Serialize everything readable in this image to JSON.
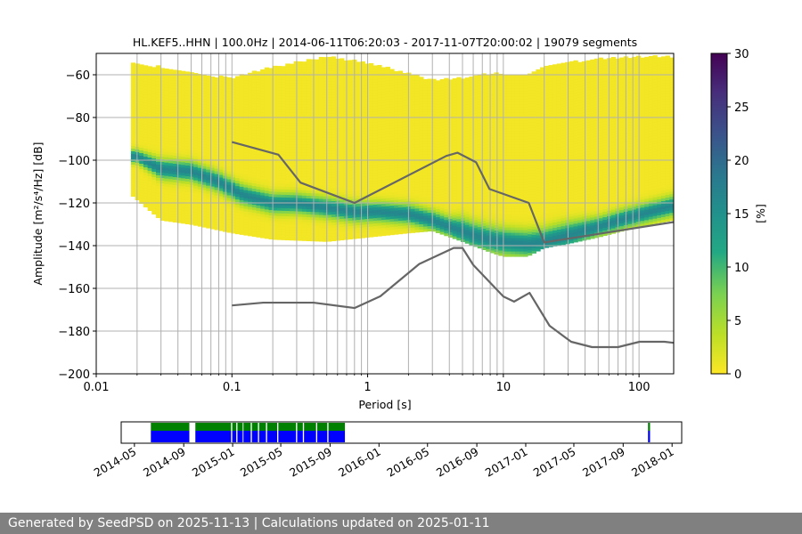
{
  "chart_data": [
    {
      "type": "heatmap",
      "title": "HL.KEF5..HHN | 100.0Hz | 2014-06-11T06:20:03 - 2017-11-07T20:00:02 | 19079 segments",
      "xlabel": "Period [s]",
      "ylabel": "Amplitude [m²/s⁴/Hz] [dB]",
      "xscale": "log",
      "xlim": [
        0.01,
        180
      ],
      "ylim": [
        -200,
        -50
      ],
      "x_ticks": [
        0.01,
        0.1,
        1,
        10,
        100
      ],
      "x_tick_labels": [
        "0.01",
        "0.1",
        "1",
        "10",
        "100"
      ],
      "y_ticks": [
        -200,
        -180,
        -160,
        -140,
        -120,
        -100,
        -80,
        -60
      ],
      "y_tick_labels": [
        "−200",
        "−180",
        "−160",
        "−140",
        "−120",
        "−100",
        "−80",
        "−60"
      ],
      "grid": true,
      "colorbar": {
        "label": "[%]",
        "range": [
          0,
          30
        ],
        "ticks": [
          0,
          5,
          10,
          15,
          20,
          25,
          30
        ],
        "tick_labels": [
          "0",
          "5",
          "10",
          "15",
          "20",
          "25",
          "30"
        ],
        "colormap": "viridis_r"
      },
      "psd_mode_curve": {
        "period": [
          0.02,
          0.03,
          0.05,
          0.08,
          0.12,
          0.2,
          0.3,
          0.5,
          0.8,
          1.2,
          2,
          3,
          4,
          5,
          6,
          8,
          10,
          15,
          20,
          30,
          50,
          80,
          120,
          180
        ],
        "db": [
          -98,
          -104,
          -105,
          -110,
          -116,
          -120,
          -120,
          -122,
          -124,
          -124,
          -125,
          -128,
          -131,
          -133,
          -135,
          -137,
          -138,
          -139,
          -138,
          -135,
          -131,
          -127,
          -124,
          -121
        ]
      },
      "psd_spread_db": [
        2,
        3,
        3,
        3,
        3,
        3,
        3,
        3,
        3,
        3,
        3,
        3,
        3,
        4,
        4,
        4,
        4,
        4,
        4,
        4,
        3,
        3,
        3,
        3
      ],
      "psd_extent": {
        "period": [
          0.018,
          0.03,
          0.05,
          0.1,
          0.2,
          0.5,
          1,
          2,
          3,
          5,
          8,
          10,
          15,
          20,
          30,
          50,
          100,
          180
        ],
        "top_db": [
          -55,
          -57,
          -60,
          -62,
          -57,
          -52,
          -55,
          -60,
          -63,
          -62,
          -60,
          -60,
          -60,
          -57,
          -55,
          -53,
          -52,
          -52
        ],
        "bottom_db": [
          -116,
          -128,
          -130,
          -134,
          -137,
          -138,
          -136,
          -134,
          -133,
          -138,
          -143,
          -145,
          -145,
          -141,
          -139,
          -136,
          -131,
          -128
        ]
      },
      "nhnm": {
        "name": "NHNM",
        "period": [
          0.1,
          0.22,
          0.32,
          0.8,
          3.8,
          4.6,
          6.3,
          7.9,
          15.4,
          20,
          354.8
        ],
        "db": [
          -91.5,
          -97.4,
          -110.5,
          -120,
          -98,
          -96.5,
          -101,
          -113.5,
          -120,
          -138.5,
          -126
        ]
      },
      "nlnm": {
        "name": "NLNM",
        "period": [
          0.1,
          0.17,
          0.4,
          0.8,
          1.24,
          2.4,
          4.3,
          5,
          6,
          10,
          12,
          15.6,
          21.9,
          31.6,
          45,
          70,
          101,
          154,
          180
        ],
        "db": [
          -168,
          -166.7,
          -166.7,
          -169.2,
          -163.7,
          -148.6,
          -141.1,
          -141.1,
          -149,
          -163.8,
          -166.2,
          -162.1,
          -177.5,
          -185,
          -187.5,
          -187.5,
          -185,
          -185,
          -185.5
        ]
      }
    },
    {
      "type": "timeline",
      "x_ticks": [
        "2014-05",
        "2014-09",
        "2015-01",
        "2015-05",
        "2015-09",
        "2016-01",
        "2016-05",
        "2016-09",
        "2017-01",
        "2017-05",
        "2017-09",
        "2018-01"
      ],
      "data_colors": {
        "top": "#008000",
        "bottom": "#0000ff"
      },
      "segments": [
        [
          "2014-06-11",
          "2014-09-15"
        ],
        [
          "2014-09-30",
          "2014-12-28"
        ],
        [
          "2014-12-31",
          "2015-01-10"
        ],
        [
          "2015-01-13",
          "2015-01-26"
        ],
        [
          "2015-01-28",
          "2015-02-15"
        ],
        [
          "2015-02-18",
          "2015-03-05"
        ],
        [
          "2015-03-08",
          "2015-03-25"
        ],
        [
          "2015-03-28",
          "2015-04-22"
        ],
        [
          "2015-04-25",
          "2015-06-08"
        ],
        [
          "2015-06-11",
          "2015-06-25"
        ],
        [
          "2015-06-28",
          "2015-07-28"
        ],
        [
          "2015-07-31",
          "2015-08-25"
        ],
        [
          "2015-08-28",
          "2015-10-08"
        ],
        [
          "2017-11-02",
          "2017-11-07"
        ]
      ]
    }
  ],
  "footer": {
    "text": "Generated by SeedPSD on 2025-11-13 | Calculations updated on 2025-01-11"
  },
  "colors": {
    "grid": "#b0b0b0",
    "model_curve": "#666666",
    "footer_bg": "#808080"
  }
}
